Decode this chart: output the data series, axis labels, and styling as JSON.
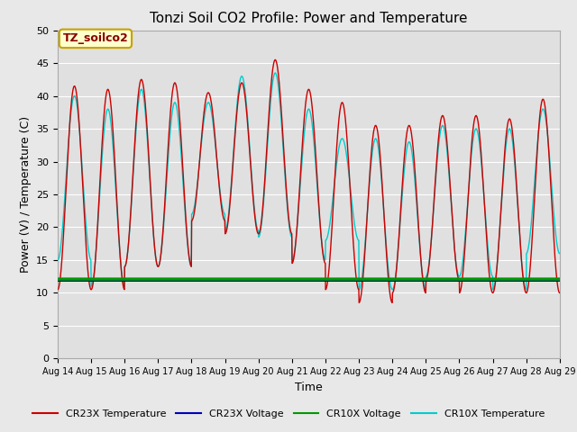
{
  "title": "Tonzi Soil CO2 Profile: Power and Temperature",
  "xlabel": "Time",
  "ylabel": "Power (V) / Temperature (C)",
  "ylim": [
    0,
    50
  ],
  "bg_color": "#e8e8e8",
  "plot_bg_color": "#e0e0e0",
  "annotation_text": "TZ_soilco2",
  "annotation_bg": "#ffffcc",
  "annotation_border": "#c8a000",
  "tick_labels": [
    "Aug 14",
    "Aug 15",
    "Aug 16",
    "Aug 17",
    "Aug 18",
    "Aug 19",
    "Aug 20",
    "Aug 21",
    "Aug 22",
    "Aug 23",
    "Aug 24",
    "Aug 25",
    "Aug 26",
    "Aug 27",
    "Aug 28",
    "Aug 29"
  ],
  "cr23x_temp_color": "#cc0000",
  "cr23x_volt_color": "#0000bb",
  "cr10x_volt_color": "#009900",
  "cr10x_temp_color": "#00cccc",
  "legend_labels": [
    "CR23X Temperature",
    "CR23X Voltage",
    "CR10X Voltage",
    "CR10X Temperature"
  ],
  "day_peaks_23x": [
    41.5,
    41.0,
    42.5,
    42.0,
    40.5,
    42.0,
    45.5,
    41.0,
    39.0,
    35.5,
    35.5,
    37.0,
    37.0,
    36.5,
    39.5
  ],
  "day_troughs_23x": [
    10.5,
    10.5,
    14.0,
    14.0,
    21.0,
    19.0,
    19.0,
    14.5,
    10.5,
    8.5,
    10.0,
    12.0,
    10.0,
    10.0,
    10.0
  ],
  "day_peaks_10x": [
    40.0,
    38.0,
    41.0,
    39.0,
    39.0,
    43.0,
    43.5,
    38.0,
    33.5,
    33.5,
    33.0,
    35.5,
    35.0,
    35.0,
    38.0
  ],
  "day_troughs_10x": [
    15.0,
    11.0,
    14.0,
    14.0,
    22.0,
    19.5,
    18.5,
    15.0,
    18.0,
    10.5,
    10.5,
    12.5,
    12.5,
    10.5,
    16.0
  ],
  "cr23x_volt_level": 11.9,
  "cr10x_volt_level": 12.1,
  "n_days": 15,
  "ppd": 120
}
